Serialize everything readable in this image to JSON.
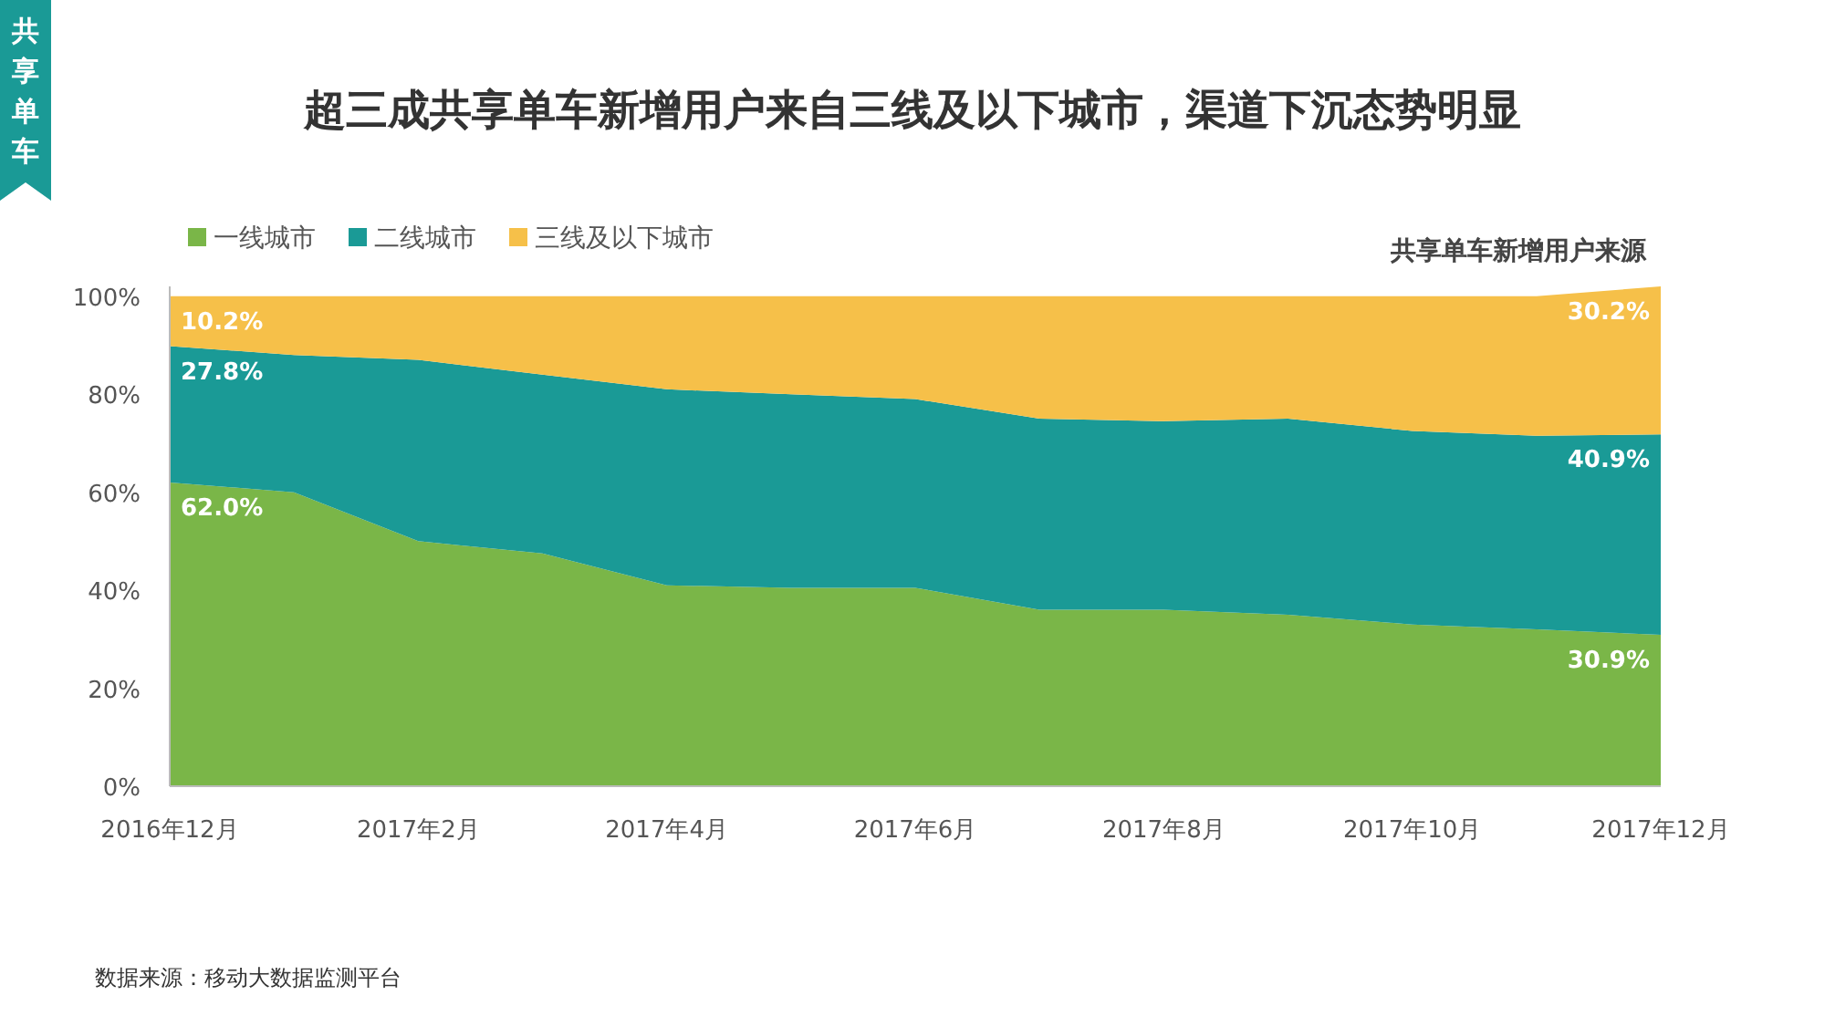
{
  "chart_data": {
    "type": "area",
    "stacked": true,
    "title": "超三成共享单车新增用户来自三线及以下城市，渠道下沉态势明显",
    "subtitle": "共享单车新增用户来源",
    "categories": [
      "2016年12月",
      null,
      "2017年2月",
      null,
      "2017年4月",
      null,
      "2017年6月",
      null,
      "2017年8月",
      null,
      "2017年10月",
      null,
      "2017年12月"
    ],
    "series": [
      {
        "name": "一线城市",
        "color": "#7ab648",
        "values": [
          62.0,
          60,
          50,
          47.5,
          41,
          40.5,
          40.5,
          36,
          36,
          35,
          33,
          32,
          30.9
        ],
        "value_labels": [
          "62.0%",
          null,
          null,
          null,
          null,
          null,
          null,
          null,
          null,
          null,
          null,
          null,
          "30.9%"
        ]
      },
      {
        "name": "二线城市",
        "color": "#1a9a96",
        "values": [
          27.8,
          28,
          37,
          36.5,
          40,
          39.5,
          38.5,
          39,
          38.5,
          40,
          39.5,
          39.5,
          40.9
        ],
        "value_labels": [
          "27.8%",
          null,
          null,
          null,
          null,
          null,
          null,
          null,
          null,
          null,
          null,
          null,
          "40.9%"
        ]
      },
      {
        "name": "三线及以下城市",
        "color": "#f6c049",
        "values": [
          10.2,
          12,
          13,
          16,
          19,
          20,
          21,
          25,
          25.5,
          25,
          27.5,
          28.5,
          30.2
        ],
        "value_labels": [
          "10.2%",
          null,
          null,
          null,
          null,
          null,
          null,
          null,
          null,
          null,
          null,
          null,
          "30.2%"
        ]
      }
    ],
    "ylim": [
      0,
      102
    ],
    "yticks": [
      {
        "value": 0,
        "label": "0%"
      },
      {
        "value": 20,
        "label": "20%"
      },
      {
        "value": 40,
        "label": "40%"
      },
      {
        "value": 60,
        "label": "60%"
      },
      {
        "value": 80,
        "label": "80%"
      },
      {
        "value": 100,
        "label": "100%"
      }
    ],
    "legend": "top left",
    "grid": false,
    "annotations": [
      "共享单车",
      "数据来源：移动大数据监测平台"
    ]
  }
}
